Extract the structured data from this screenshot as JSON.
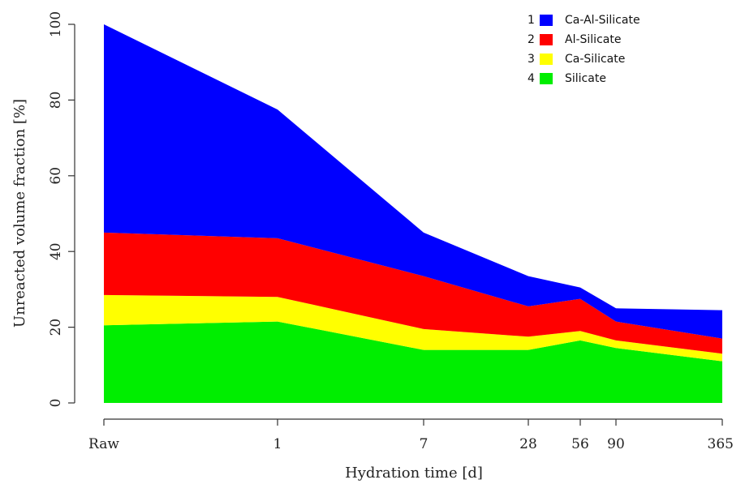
{
  "chart_data": {
    "type": "area",
    "stacked": true,
    "title": "",
    "xlabel": "Hydration time [d]",
    "ylabel": "Unreacted volume fraction [%]",
    "x_ticks": [
      "Raw",
      "1",
      "7",
      "28",
      "56",
      "90",
      "365"
    ],
    "x_scale": "log-like (Raw shown at origin)",
    "ylim": [
      0,
      100
    ],
    "y_ticks": [
      0,
      20,
      40,
      60,
      80,
      100
    ],
    "grid": false,
    "legend_position": "top-right",
    "series": [
      {
        "id": "1",
        "name": "Silicate",
        "color": "#00EE00",
        "legend_number": "4",
        "values": [
          20.5,
          21.5,
          14,
          14,
          16.5,
          14.5,
          11
        ]
      },
      {
        "id": "2",
        "name": "Ca-Silicate",
        "color": "#FFFF00",
        "legend_number": "3",
        "values": [
          8,
          6.5,
          5.5,
          3.5,
          2.5,
          2,
          2
        ]
      },
      {
        "id": "3",
        "name": "Al-Silicate",
        "color": "#FF0000",
        "legend_number": "2",
        "values": [
          16.5,
          15.5,
          14,
          8,
          8.5,
          5,
          4
        ]
      },
      {
        "id": "4",
        "name": "Ca-Al-Silicate",
        "color": "#0000FF",
        "legend_number": "1",
        "values": [
          55,
          34,
          11.5,
          8,
          3,
          3.5,
          7.5
        ]
      }
    ],
    "legend": [
      {
        "number": "1",
        "label": "Ca-Al-Silicate",
        "color": "#0000FF"
      },
      {
        "number": "2",
        "label": "Al-Silicate",
        "color": "#FF0000"
      },
      {
        "number": "3",
        "label": "Ca-Silicate",
        "color": "#FFFF00"
      },
      {
        "number": "4",
        "label": "Silicate",
        "color": "#00EE00"
      }
    ]
  }
}
